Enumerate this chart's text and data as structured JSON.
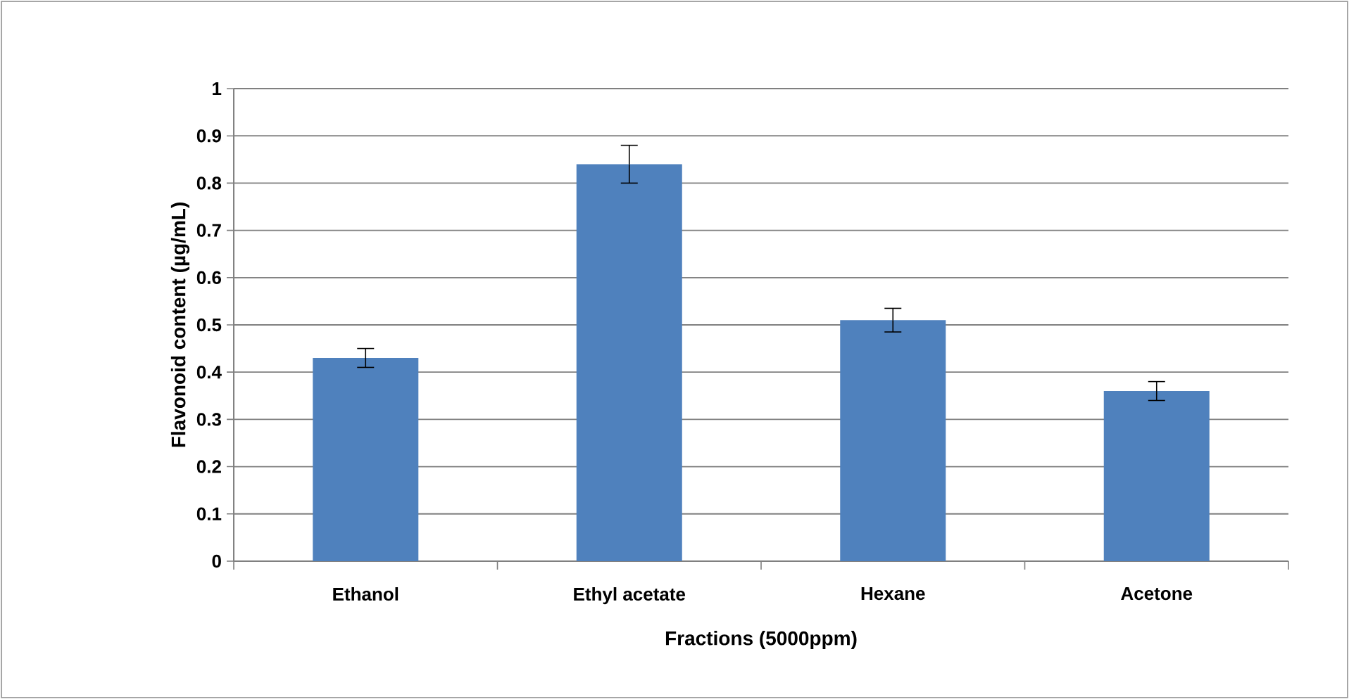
{
  "chart_data": {
    "type": "bar",
    "xlabel": "Fractions (5000ppm)",
    "ylabel": "Flavonoid content (µg/mL)",
    "categories": [
      "Ethanol",
      "Ethyl acetate",
      "Hexane",
      "Acetone"
    ],
    "values": [
      0.43,
      0.84,
      0.51,
      0.36
    ],
    "errors": [
      0.02,
      0.04,
      0.025,
      0.02
    ],
    "color": "#4f81bd",
    "ylim": [
      0,
      1
    ],
    "yticks": [
      0,
      0.1,
      0.2,
      0.3,
      0.4,
      0.5,
      0.6,
      0.7,
      0.8,
      0.9,
      1
    ],
    "grid": "y"
  }
}
